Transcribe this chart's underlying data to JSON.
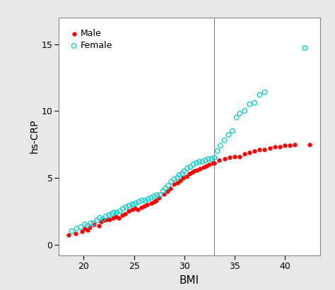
{
  "title": "",
  "xlabel": "BMI",
  "ylabel": "hs-CRP",
  "xlim": [
    17.5,
    43.5
  ],
  "ylim": [
    -0.8,
    17
  ],
  "xticks": [
    20,
    25,
    30,
    35,
    40
  ],
  "yticks": [
    0,
    5,
    10,
    15
  ],
  "vline_x": 33,
  "male_color": "#FF0000",
  "female_color": "#00CCCC",
  "male_points": [
    [
      18.5,
      0.7
    ],
    [
      19.2,
      0.8
    ],
    [
      19.8,
      1.0
    ],
    [
      20.1,
      1.2
    ],
    [
      20.4,
      1.1
    ],
    [
      20.6,
      1.3
    ],
    [
      21.0,
      1.5
    ],
    [
      21.5,
      1.4
    ],
    [
      21.7,
      1.7
    ],
    [
      22.0,
      1.8
    ],
    [
      22.3,
      1.9
    ],
    [
      22.6,
      1.9
    ],
    [
      22.9,
      2.0
    ],
    [
      23.2,
      2.1
    ],
    [
      23.5,
      2.0
    ],
    [
      23.8,
      2.2
    ],
    [
      24.1,
      2.3
    ],
    [
      24.5,
      2.5
    ],
    [
      24.8,
      2.6
    ],
    [
      25.1,
      2.7
    ],
    [
      25.4,
      2.6
    ],
    [
      25.7,
      2.8
    ],
    [
      26.0,
      2.9
    ],
    [
      26.3,
      3.0
    ],
    [
      26.7,
      3.1
    ],
    [
      27.0,
      3.2
    ],
    [
      27.2,
      3.3
    ],
    [
      27.5,
      3.5
    ],
    [
      28.0,
      3.8
    ],
    [
      28.3,
      4.0
    ],
    [
      28.6,
      4.2
    ],
    [
      29.0,
      4.5
    ],
    [
      29.3,
      4.6
    ],
    [
      29.6,
      4.8
    ],
    [
      29.9,
      5.0
    ],
    [
      30.2,
      5.1
    ],
    [
      30.5,
      5.3
    ],
    [
      30.8,
      5.4
    ],
    [
      31.0,
      5.5
    ],
    [
      31.3,
      5.6
    ],
    [
      31.6,
      5.7
    ],
    [
      31.9,
      5.8
    ],
    [
      32.2,
      5.9
    ],
    [
      32.5,
      6.0
    ],
    [
      32.8,
      6.1
    ],
    [
      33.0,
      6.1
    ],
    [
      33.5,
      6.3
    ],
    [
      34.0,
      6.4
    ],
    [
      34.5,
      6.5
    ],
    [
      35.0,
      6.6
    ],
    [
      35.5,
      6.6
    ],
    [
      36.0,
      6.8
    ],
    [
      36.5,
      6.9
    ],
    [
      37.0,
      7.0
    ],
    [
      37.5,
      7.1
    ],
    [
      38.0,
      7.1
    ],
    [
      38.5,
      7.2
    ],
    [
      39.0,
      7.3
    ],
    [
      39.5,
      7.3
    ],
    [
      40.0,
      7.4
    ],
    [
      40.5,
      7.4
    ],
    [
      41.0,
      7.5
    ],
    [
      42.5,
      7.5
    ]
  ],
  "female_points": [
    [
      18.8,
      1.0
    ],
    [
      19.3,
      1.2
    ],
    [
      19.7,
      1.3
    ],
    [
      20.1,
      1.5
    ],
    [
      20.4,
      1.4
    ],
    [
      20.7,
      1.6
    ],
    [
      21.0,
      1.6
    ],
    [
      21.3,
      1.8
    ],
    [
      21.6,
      2.0
    ],
    [
      21.9,
      1.9
    ],
    [
      22.2,
      2.1
    ],
    [
      22.5,
      2.2
    ],
    [
      22.8,
      2.3
    ],
    [
      23.0,
      2.4
    ],
    [
      23.3,
      2.4
    ],
    [
      23.6,
      2.5
    ],
    [
      23.9,
      2.7
    ],
    [
      24.2,
      2.8
    ],
    [
      24.5,
      2.9
    ],
    [
      24.8,
      3.0
    ],
    [
      25.0,
      3.0
    ],
    [
      25.2,
      3.1
    ],
    [
      25.5,
      3.2
    ],
    [
      25.8,
      3.3
    ],
    [
      26.1,
      3.3
    ],
    [
      26.4,
      3.4
    ],
    [
      26.7,
      3.5
    ],
    [
      27.0,
      3.6
    ],
    [
      27.3,
      3.7
    ],
    [
      27.6,
      3.7
    ],
    [
      27.9,
      4.0
    ],
    [
      28.1,
      4.2
    ],
    [
      28.4,
      4.4
    ],
    [
      28.7,
      4.7
    ],
    [
      29.0,
      4.9
    ],
    [
      29.3,
      5.0
    ],
    [
      29.5,
      5.2
    ],
    [
      29.8,
      5.3
    ],
    [
      30.0,
      5.5
    ],
    [
      30.3,
      5.7
    ],
    [
      30.6,
      5.8
    ],
    [
      30.9,
      6.0
    ],
    [
      31.2,
      6.1
    ],
    [
      31.5,
      6.2
    ],
    [
      31.8,
      6.2
    ],
    [
      32.1,
      6.3
    ],
    [
      32.4,
      6.4
    ],
    [
      32.7,
      6.4
    ],
    [
      33.0,
      6.5
    ],
    [
      33.3,
      7.0
    ],
    [
      33.6,
      7.4
    ],
    [
      34.0,
      7.8
    ],
    [
      34.4,
      8.2
    ],
    [
      34.8,
      8.5
    ],
    [
      35.2,
      9.5
    ],
    [
      35.5,
      9.8
    ],
    [
      36.0,
      10.0
    ],
    [
      36.5,
      10.5
    ],
    [
      37.0,
      10.6
    ],
    [
      37.5,
      11.2
    ],
    [
      38.0,
      11.4
    ],
    [
      42.0,
      14.7
    ]
  ],
  "background_color": "#e8e8e8",
  "plot_bg_color": "#ffffff",
  "legend_male_label": "Male",
  "legend_female_label": "Female"
}
